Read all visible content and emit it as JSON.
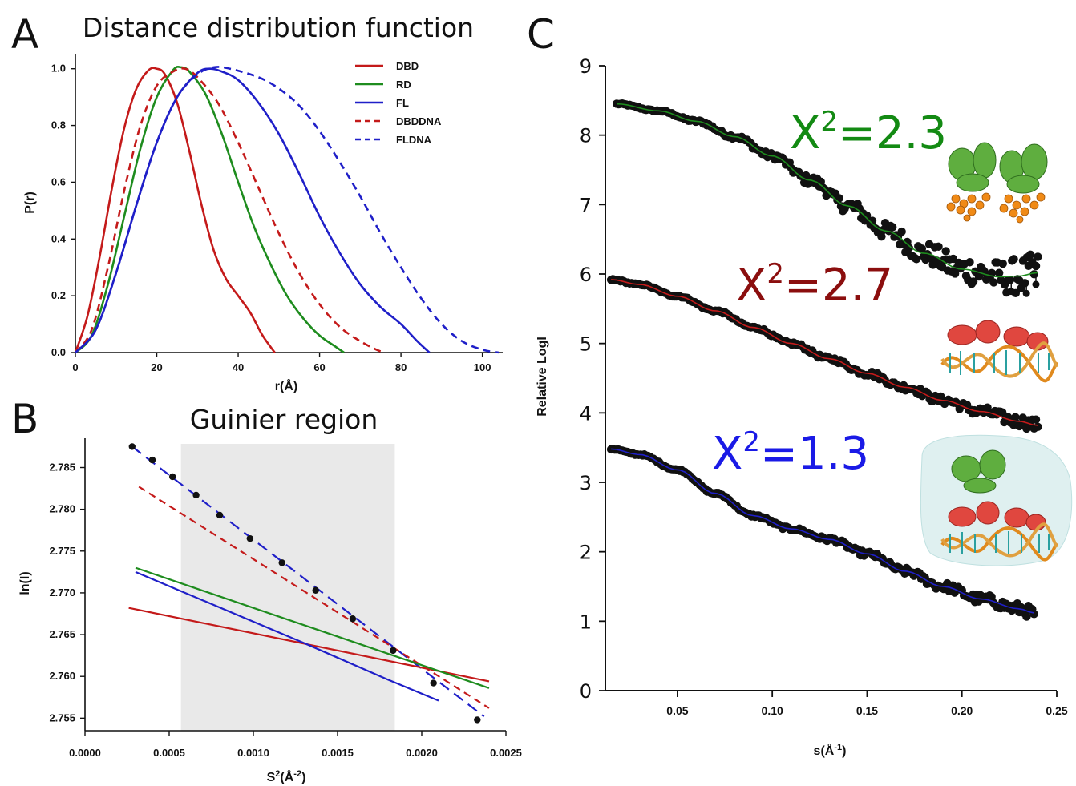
{
  "colors": {
    "red": "#c41a1a",
    "green": "#1e8c1e",
    "blue": "#1f1fc8",
    "darkred": "#8b0e0e",
    "chi_green": "#138a13",
    "chi_blue": "#1a1ae6",
    "points": "#111111",
    "shade": "#e9e9e9"
  },
  "panelA": {
    "letter": "A",
    "title": "Distance distribution function",
    "ylabel": "P(r)",
    "xlabel": "r(Å)",
    "legend": [
      "DBD",
      "RD",
      "FL",
      "DBDDNA",
      "FLDNA"
    ]
  },
  "panelB": {
    "letter": "B",
    "title": "Guinier region",
    "ylabel": "ln(I)",
    "xlabel_base": "S",
    "xlabel_sup": "2",
    "xlabel_mid": "(Å",
    "xlabel_sup2": "-2",
    "xlabel_end": ")"
  },
  "panelC": {
    "letter": "C",
    "ylabel": "Relative LogI",
    "xlabel_base": "s(Å",
    "xlabel_sup": "-1",
    "xlabel_end": ")",
    "chi_labels": [
      {
        "base": "X",
        "sup": "2",
        "value": "=2.3"
      },
      {
        "base": "X",
        "sup": "2",
        "value": "=2.7"
      },
      {
        "base": "X",
        "sup": "2",
        "value": "=1.3"
      }
    ]
  },
  "chart_data": [
    {
      "type": "line",
      "panel": "A",
      "title": "Distance distribution function",
      "xlabel": "r(Å)",
      "ylabel": "P(r)",
      "xlim": [
        0,
        105
      ],
      "ylim": [
        0,
        1.05
      ],
      "xticks": [
        0,
        20,
        40,
        60,
        80,
        100
      ],
      "yticks": [
        0.0,
        0.2,
        0.4,
        0.6,
        0.8,
        1.0
      ],
      "legend_position": "top-right",
      "series": [
        {
          "name": "DBD",
          "style": "solid",
          "color": "red",
          "x": [
            0,
            3,
            6,
            9,
            12,
            15,
            18,
            20,
            22,
            25,
            28,
            31,
            34,
            37,
            40,
            43,
            46,
            49
          ],
          "y": [
            0,
            0.13,
            0.34,
            0.58,
            0.79,
            0.93,
            0.995,
            1.0,
            0.98,
            0.88,
            0.71,
            0.52,
            0.36,
            0.26,
            0.2,
            0.14,
            0.06,
            0
          ]
        },
        {
          "name": "RD",
          "style": "solid",
          "color": "green",
          "x": [
            0,
            4,
            8,
            12,
            16,
            20,
            24,
            26,
            28,
            32,
            36,
            40,
            44,
            48,
            52,
            56,
            60,
            64,
            66
          ],
          "y": [
            0,
            0.06,
            0.24,
            0.48,
            0.72,
            0.9,
            0.995,
            1.005,
            0.99,
            0.91,
            0.77,
            0.6,
            0.44,
            0.31,
            0.2,
            0.12,
            0.06,
            0.02,
            0
          ]
        },
        {
          "name": "FL",
          "style": "solid",
          "color": "blue",
          "x": [
            0,
            5,
            10,
            15,
            20,
            25,
            30,
            33,
            36,
            40,
            45,
            50,
            55,
            60,
            65,
            70,
            75,
            80,
            84,
            87
          ],
          "y": [
            0,
            0.08,
            0.28,
            0.52,
            0.74,
            0.9,
            0.985,
            1.0,
            0.99,
            0.96,
            0.88,
            0.77,
            0.63,
            0.48,
            0.35,
            0.24,
            0.16,
            0.1,
            0.04,
            0
          ]
        },
        {
          "name": "DBDDNA",
          "style": "dashed",
          "color": "red",
          "x": [
            0,
            4,
            8,
            12,
            16,
            20,
            24,
            27,
            30,
            35,
            40,
            45,
            50,
            55,
            60,
            65,
            70,
            74,
            76
          ],
          "y": [
            0,
            0.08,
            0.3,
            0.57,
            0.8,
            0.94,
            0.99,
            1.0,
            0.97,
            0.88,
            0.74,
            0.58,
            0.42,
            0.28,
            0.17,
            0.09,
            0.04,
            0.01,
            0
          ]
        },
        {
          "name": "FLDNA",
          "style": "dashed",
          "color": "blue",
          "x": [
            0,
            5,
            10,
            15,
            20,
            25,
            30,
            34,
            38,
            45,
            50,
            55,
            60,
            65,
            70,
            75,
            80,
            85,
            90,
            95,
            100,
            104
          ],
          "y": [
            0,
            0.08,
            0.28,
            0.52,
            0.74,
            0.9,
            0.98,
            1.005,
            1.0,
            0.97,
            0.93,
            0.87,
            0.78,
            0.67,
            0.55,
            0.42,
            0.3,
            0.19,
            0.1,
            0.04,
            0.01,
            0
          ]
        }
      ]
    },
    {
      "type": "scatter",
      "panel": "B",
      "title": "Guinier region",
      "xlabel": "S2(Å-2)",
      "ylabel": "ln(I)",
      "xlim": [
        0.0,
        0.0025
      ],
      "ylim": [
        2.7535,
        2.7885
      ],
      "xticks": [
        0.0,
        0.0005,
        0.001,
        0.0015,
        0.002,
        0.0025
      ],
      "xtick_labels": [
        "0.0000",
        "0.0005",
        "0.0010",
        "0.0015",
        "0.0020",
        "0.0025"
      ],
      "yticks": [
        2.755,
        2.76,
        2.765,
        2.77,
        2.775,
        2.78,
        2.785
      ],
      "shaded_range": [
        0.00057,
        0.00184
      ],
      "points": {
        "x": [
          0.00028,
          0.0004,
          0.00052,
          0.00066,
          0.0008,
          0.00098,
          0.00117,
          0.00137,
          0.00159,
          0.00183,
          0.00207,
          0.00233
        ],
        "y": [
          2.7875,
          2.7859,
          2.7839,
          2.7817,
          2.7793,
          2.7765,
          2.7736,
          2.7703,
          2.7669,
          2.7631,
          2.7592,
          2.7548
        ]
      },
      "lines": [
        {
          "color": "blue",
          "style": "dashed",
          "x": [
            0.00028,
            0.00237
          ],
          "y": [
            2.7875,
            2.7552
          ]
        },
        {
          "color": "red",
          "style": "dashed",
          "x": [
            0.00032,
            0.0024
          ],
          "y": [
            2.7827,
            2.7562
          ]
        },
        {
          "color": "red",
          "style": "solid",
          "x": [
            0.00026,
            0.0024
          ],
          "y": [
            2.7682,
            2.7594
          ]
        },
        {
          "color": "green",
          "style": "solid",
          "x": [
            0.0003,
            0.0024
          ],
          "y": [
            2.773,
            2.7586
          ]
        },
        {
          "color": "blue",
          "style": "solid",
          "x": [
            0.0003,
            0.0013,
            0.0018,
            0.0021
          ],
          "y": [
            2.7725,
            2.764,
            2.7596,
            2.7571
          ]
        }
      ]
    },
    {
      "type": "scatter",
      "panel": "C",
      "xlabel": "s(Å-1)",
      "ylabel": "Relative LogI",
      "xlim": [
        0.012,
        0.25
      ],
      "ylim": [
        0,
        9
      ],
      "xticks": [
        0.05,
        0.1,
        0.15,
        0.2,
        0.25
      ],
      "xtick_labels": [
        "0.05",
        "0.10",
        "0.15",
        "0.20",
        "0.25"
      ],
      "yticks": [
        0,
        1,
        2,
        3,
        4,
        5,
        6,
        7,
        8,
        9
      ],
      "series": [
        {
          "fit_color": "green",
          "chi2": 2.3,
          "x": [
            0.018,
            0.04,
            0.06,
            0.08,
            0.1,
            0.12,
            0.14,
            0.16,
            0.18,
            0.2,
            0.22,
            0.23,
            0.24
          ],
          "y": [
            8.45,
            8.35,
            8.2,
            7.98,
            7.7,
            7.35,
            6.98,
            6.62,
            6.3,
            6.07,
            5.96,
            5.97,
            6.02
          ]
        },
        {
          "fit_color": "red",
          "chi2": 2.7,
          "x": [
            0.015,
            0.03,
            0.05,
            0.07,
            0.09,
            0.11,
            0.13,
            0.15,
            0.17,
            0.19,
            0.21,
            0.23,
            0.24
          ],
          "y": [
            5.92,
            5.85,
            5.68,
            5.47,
            5.23,
            5.0,
            4.78,
            4.57,
            4.37,
            4.18,
            4.02,
            3.88,
            3.82
          ]
        },
        {
          "fit_color": "blue",
          "chi2": 1.3,
          "x": [
            0.015,
            0.03,
            0.05,
            0.07,
            0.09,
            0.11,
            0.13,
            0.15,
            0.17,
            0.19,
            0.21,
            0.23,
            0.238
          ],
          "y": [
            3.48,
            3.4,
            3.18,
            2.84,
            2.52,
            2.33,
            2.18,
            1.97,
            1.72,
            1.5,
            1.32,
            1.18,
            1.12
          ]
        }
      ]
    }
  ]
}
